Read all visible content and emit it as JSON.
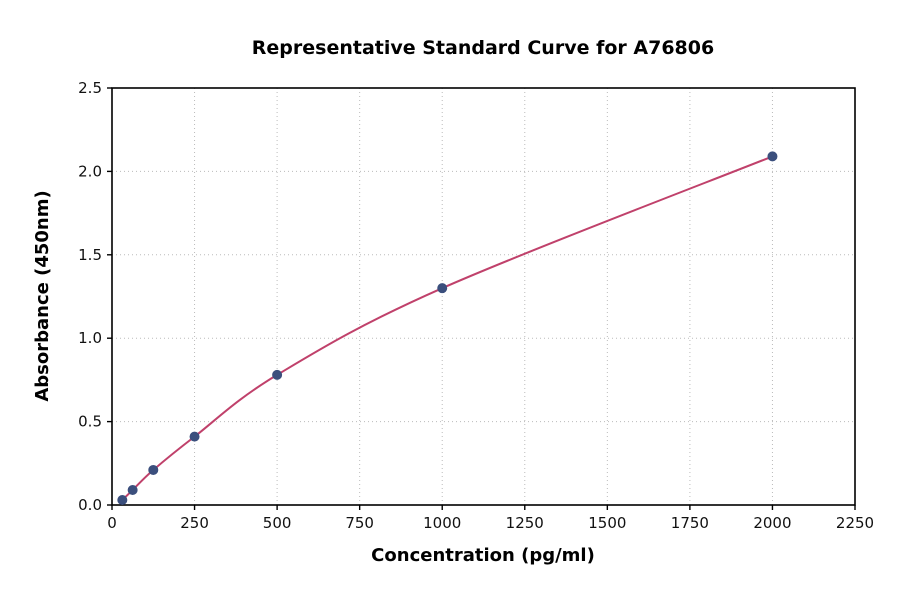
{
  "chart_data": {
    "type": "scatter",
    "title": "Representative Standard Curve for A76806",
    "xlabel": "Concentration (pg/ml)",
    "ylabel": "Absorbance (450nm)",
    "xlim": [
      0,
      2250
    ],
    "ylim": [
      0,
      2.5
    ],
    "xticks": [
      0,
      250,
      500,
      750,
      1000,
      1250,
      1500,
      1750,
      2000,
      2250
    ],
    "yticks": [
      0.0,
      0.5,
      1.0,
      1.5,
      2.0,
      2.5
    ],
    "grid": true,
    "legend": "none",
    "line_color": "#c0416b",
    "marker_color": "#3b4f7d",
    "points": {
      "x": [
        31.25,
        62.5,
        125,
        250,
        500,
        1000,
        2000
      ],
      "y": [
        0.03,
        0.09,
        0.21,
        0.41,
        0.78,
        1.3,
        2.09
      ]
    }
  }
}
